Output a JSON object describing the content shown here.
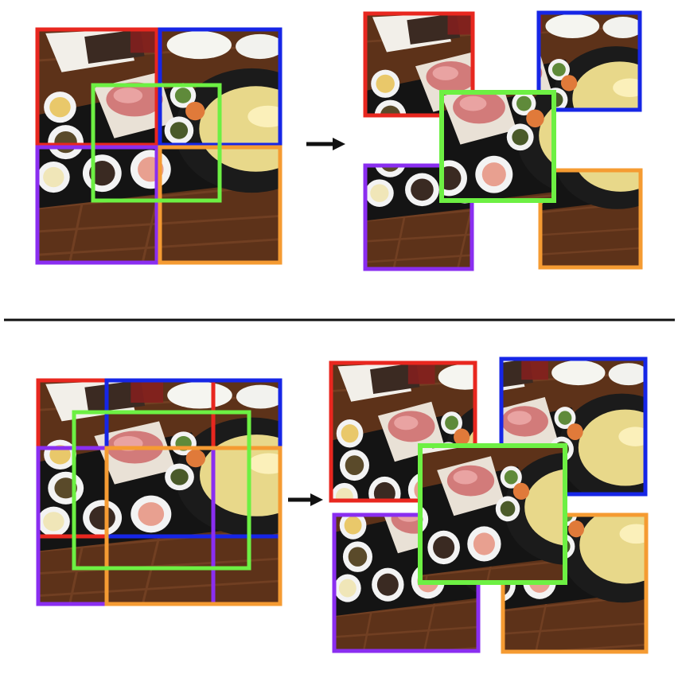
{
  "colors": {
    "red": "#e8271f",
    "blue": "#1626e6",
    "green": "#6df043",
    "purple": "#8a2ef0",
    "orange": "#f59b32",
    "arrow": "#111111",
    "divider": "#111111",
    "table_wood": "#6b3a1e",
    "pot": "#1a1a1a",
    "broth": "#e8d88a"
  },
  "icons": {
    "arrow": "right-arrow-icon"
  },
  "sections": [
    {
      "name": "top-example",
      "crops": [
        "red",
        "blue",
        "green",
        "purple",
        "orange"
      ]
    },
    {
      "name": "bottom-example",
      "crops": [
        "red",
        "blue",
        "green",
        "purple",
        "orange"
      ]
    }
  ]
}
